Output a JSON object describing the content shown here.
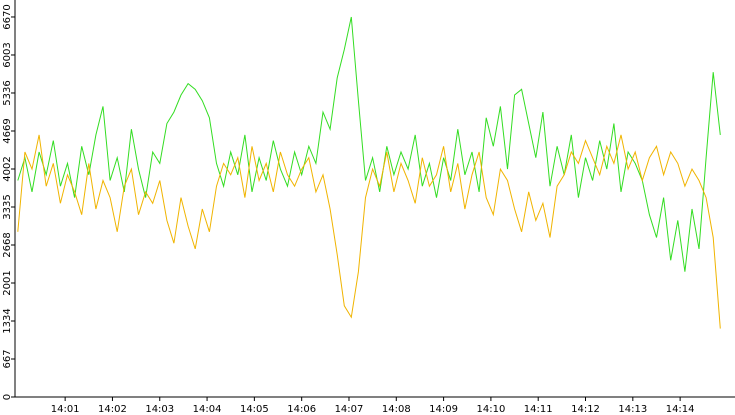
{
  "chart_data": {
    "type": "line",
    "x": [
      0,
      0.15,
      0.3,
      0.45,
      0.6,
      0.75,
      0.9,
      1.05,
      1.2,
      1.35,
      1.5,
      1.65,
      1.8,
      1.95,
      2.1,
      2.25,
      2.4,
      2.55,
      2.7,
      2.85,
      3,
      3.15,
      3.3,
      3.45,
      3.6,
      3.75,
      3.9,
      4.05,
      4.2,
      4.35,
      4.5,
      4.65,
      4.8,
      4.95,
      5.1,
      5.25,
      5.4,
      5.55,
      5.7,
      5.85,
      6,
      6.15,
      6.3,
      6.45,
      6.6,
      6.75,
      6.9,
      7.05,
      7.2,
      7.35,
      7.5,
      7.65,
      7.8,
      7.95,
      8.1,
      8.25,
      8.4,
      8.55,
      8.7,
      8.85,
      9,
      9.15,
      9.3,
      9.45,
      9.6,
      9.75,
      9.9,
      10.05,
      10.2,
      10.35,
      10.5,
      10.65,
      10.8,
      10.95,
      11.1,
      11.25,
      11.4,
      11.55,
      11.7,
      11.85,
      12,
      12.15,
      12.3,
      12.45,
      12.6,
      12.75,
      12.9,
      13.05,
      13.2,
      13.35,
      13.5,
      13.65,
      13.8,
      13.95,
      14.1,
      14.25,
      14.4,
      14.55,
      14.7,
      14.85
    ],
    "series": [
      {
        "name": "green",
        "color": "#33dd22",
        "values": [
          3800,
          4200,
          3600,
          4300,
          3900,
          4500,
          3700,
          4100,
          3500,
          4400,
          3900,
          4600,
          5100,
          3800,
          4200,
          3600,
          4700,
          4000,
          3500,
          4300,
          4100,
          4800,
          5000,
          5300,
          5500,
          5400,
          5200,
          4900,
          4100,
          3700,
          4300,
          3900,
          4600,
          3600,
          4200,
          3800,
          4500,
          4000,
          3700,
          4300,
          3900,
          4400,
          4100,
          5000,
          4700,
          5600,
          6100,
          6670,
          5200,
          3800,
          4200,
          3600,
          4400,
          3900,
          4300,
          4000,
          4600,
          3700,
          4100,
          3500,
          4200,
          3800,
          4700,
          3900,
          4300,
          3600,
          4900,
          4400,
          5100,
          4000,
          5300,
          5400,
          4800,
          4200,
          5000,
          3700,
          4400,
          3900,
          4600,
          3500,
          4200,
          3800,
          4500,
          4000,
          4800,
          3600,
          4300,
          4100,
          3800,
          3200,
          2800,
          3500,
          2400,
          3100,
          2200,
          3300,
          2600,
          4200,
          5700,
          4600
        ]
      },
      {
        "name": "yellow",
        "color": "#f0b400",
        "values": [
          2900,
          4300,
          4000,
          4600,
          3700,
          4100,
          3400,
          3900,
          3600,
          3200,
          4100,
          3300,
          3800,
          3500,
          2900,
          3700,
          4000,
          3200,
          3600,
          3400,
          3800,
          3100,
          2700,
          3500,
          3000,
          2600,
          3300,
          2900,
          3700,
          4100,
          3900,
          4200,
          3500,
          4400,
          3800,
          4100,
          3600,
          4300,
          3900,
          3700,
          4000,
          4200,
          3600,
          3900,
          3300,
          2500,
          1600,
          1400,
          2200,
          3500,
          4000,
          3700,
          4300,
          3600,
          4100,
          3800,
          3400,
          4200,
          3700,
          3900,
          4400,
          3600,
          4100,
          3300,
          3900,
          4300,
          3500,
          3200,
          4000,
          3800,
          3300,
          2900,
          3600,
          3100,
          3400,
          2800,
          3700,
          3900,
          4300,
          4100,
          4500,
          4200,
          3900,
          4400,
          4100,
          4600,
          4000,
          4300,
          3800,
          4200,
          4400,
          3900,
          4300,
          4100,
          3700,
          4000,
          3800,
          3500,
          2800,
          1200
        ]
      }
    ],
    "xlim": [
      -0.06,
      15.16
    ],
    "ylim": [
      0,
      6968
    ],
    "xticks": [
      {
        "value": 1,
        "label": "14:01"
      },
      {
        "value": 2,
        "label": "14:02"
      },
      {
        "value": 3,
        "label": "14:03"
      },
      {
        "value": 4,
        "label": "14:04"
      },
      {
        "value": 5,
        "label": "14:05"
      },
      {
        "value": 6,
        "label": "14:06"
      },
      {
        "value": 7,
        "label": "14:07"
      },
      {
        "value": 8,
        "label": "14:08"
      },
      {
        "value": 9,
        "label": "14:09"
      },
      {
        "value": 10,
        "label": "14:10"
      },
      {
        "value": 11,
        "label": "14:11"
      },
      {
        "value": 12,
        "label": "14:12"
      },
      {
        "value": 13,
        "label": "14:13"
      },
      {
        "value": 14,
        "label": "14:14"
      }
    ],
    "yticks": [
      0,
      667,
      1334,
      2001,
      2668,
      3335,
      4002,
      4669,
      5336,
      6003,
      6670
    ]
  }
}
